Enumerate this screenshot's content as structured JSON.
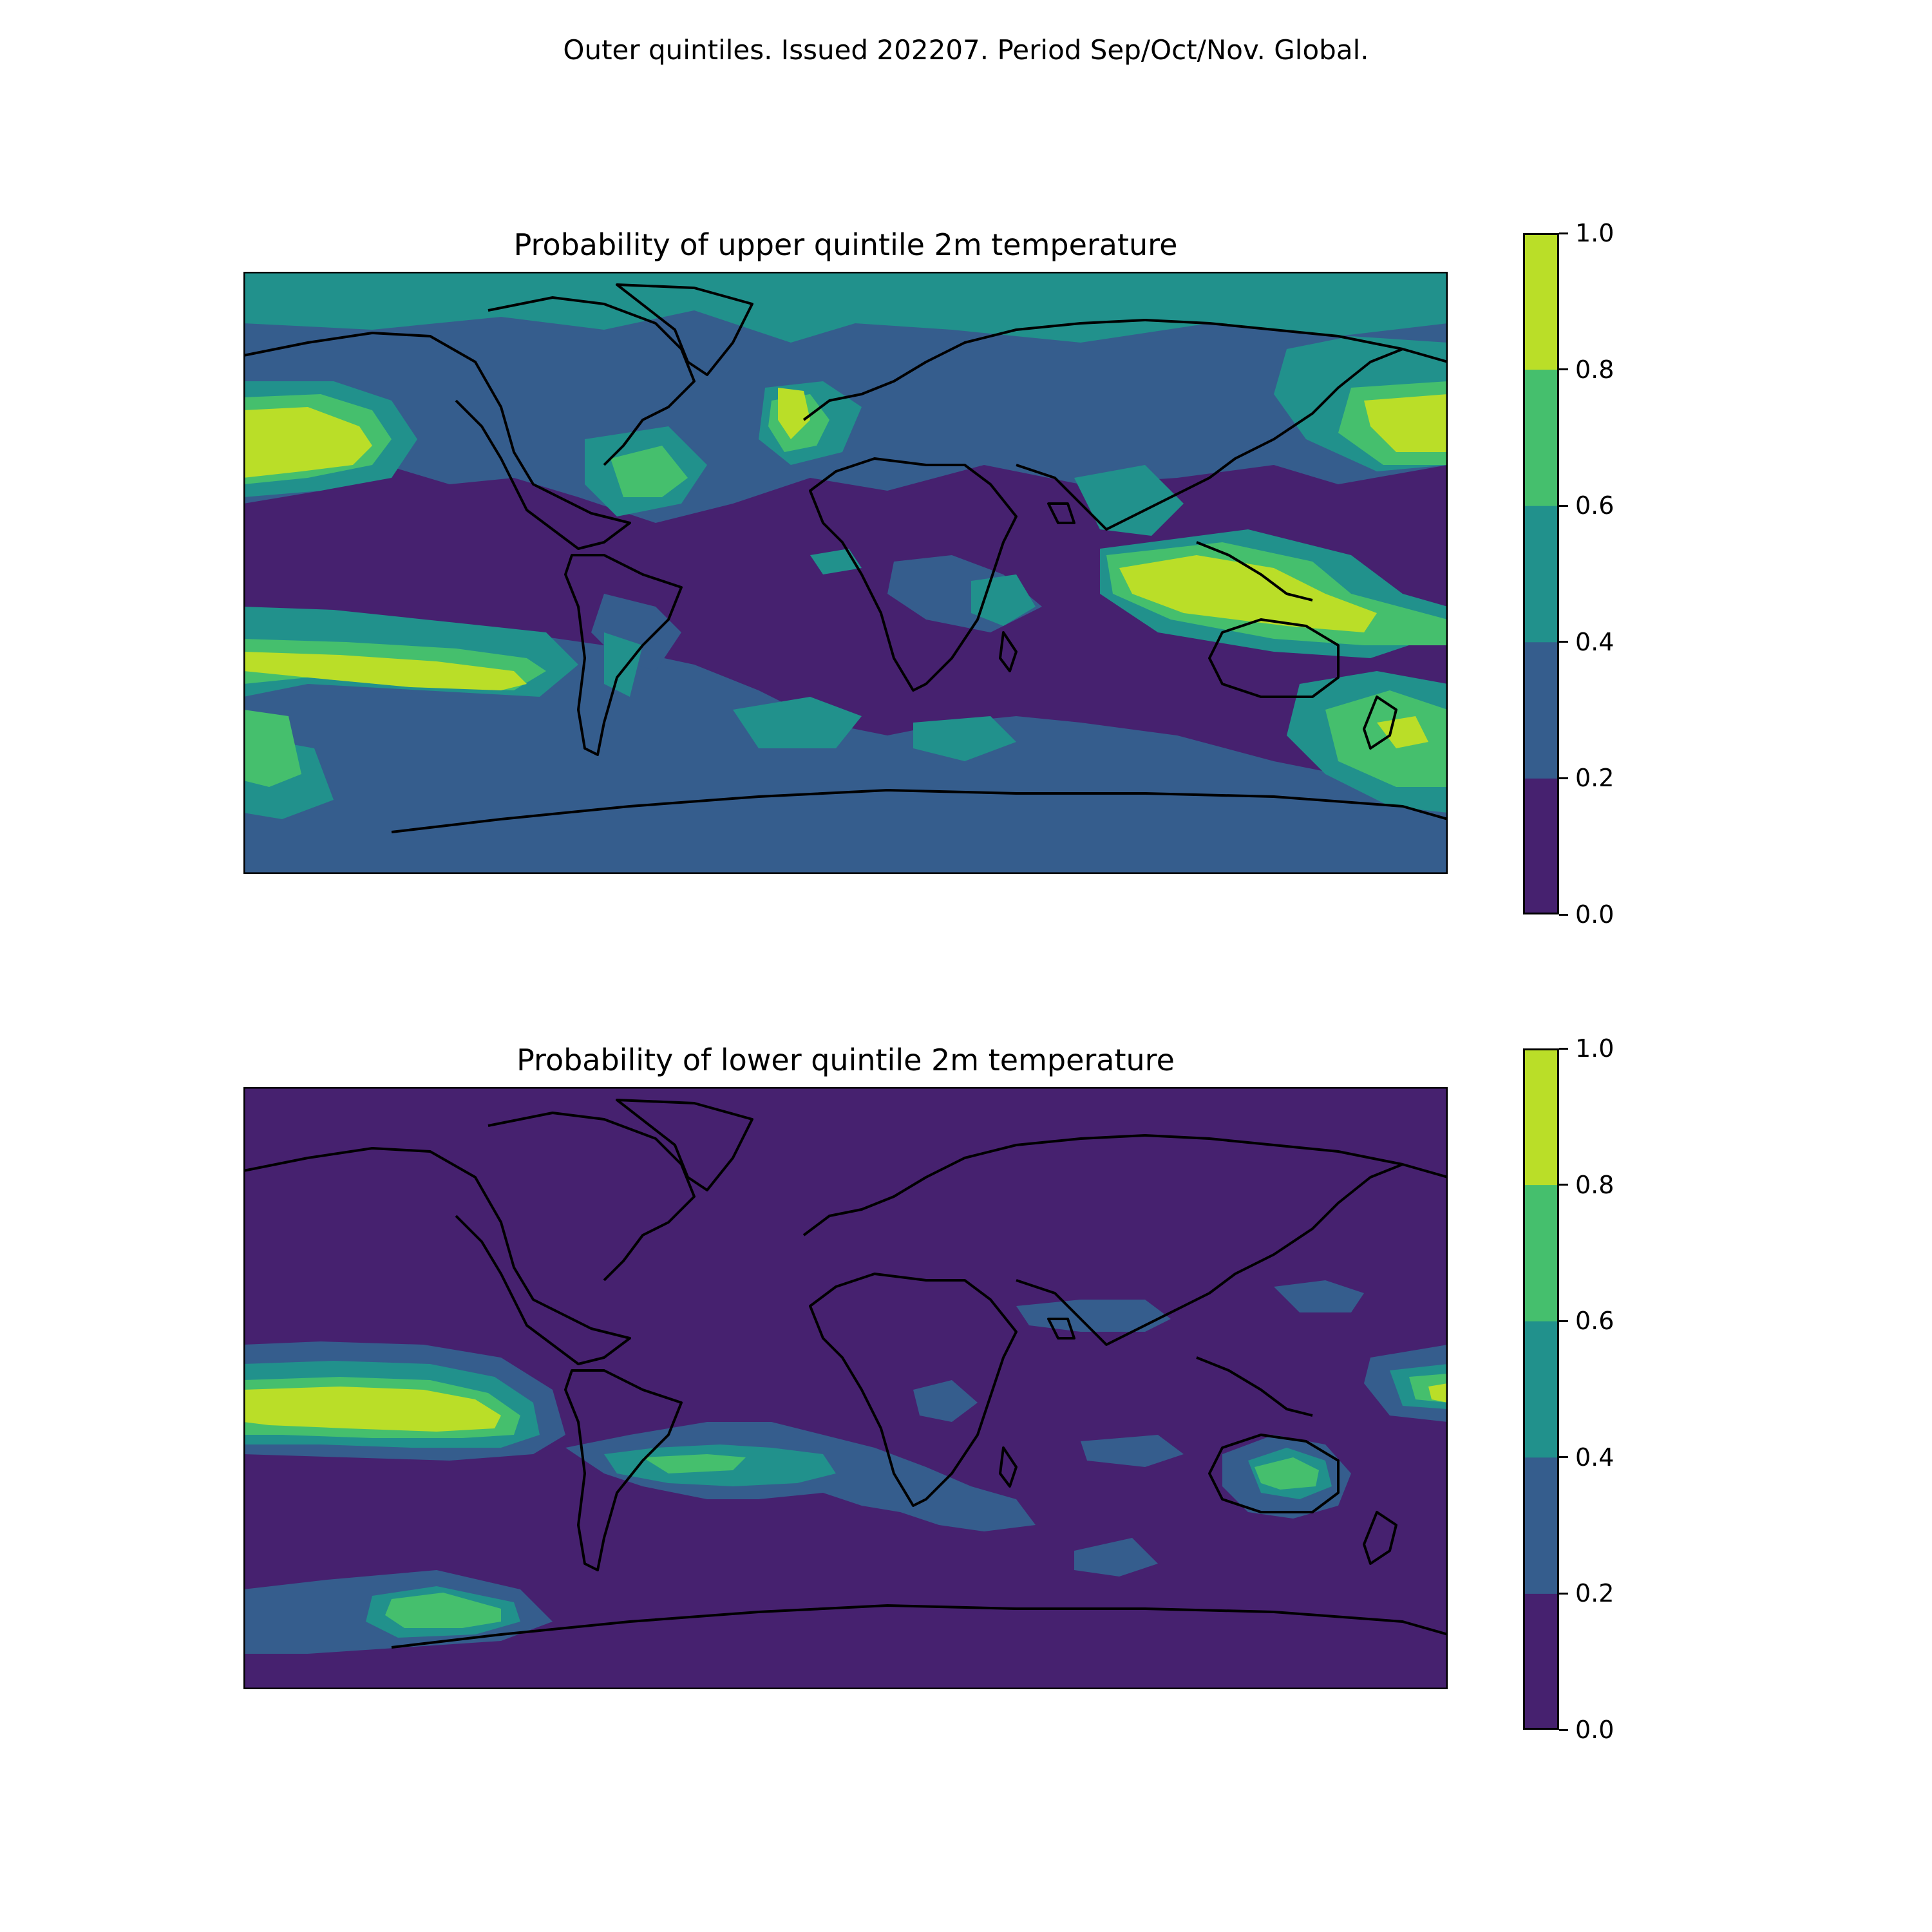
{
  "figure": {
    "title": "Outer quintiles. Issued 202207. Period Sep/Oct/Nov. Global."
  },
  "palette": {
    "levels": [
      0.0,
      0.2,
      0.4,
      0.6,
      0.8,
      1.0
    ],
    "colors": [
      "#46216f",
      "#355d8d",
      "#21918c",
      "#45bf6d",
      "#bade28"
    ]
  },
  "panels": [
    {
      "title": "Probability of upper quintile 2m temperature",
      "colorbar": {
        "ticks": [
          "0.0",
          "0.2",
          "0.4",
          "0.6",
          "0.8",
          "1.0"
        ]
      }
    },
    {
      "title": "Probability of lower quintile 2m temperature",
      "colorbar": {
        "ticks": [
          "0.0",
          "0.2",
          "0.4",
          "0.6",
          "0.8",
          "1.0"
        ]
      }
    }
  ]
}
